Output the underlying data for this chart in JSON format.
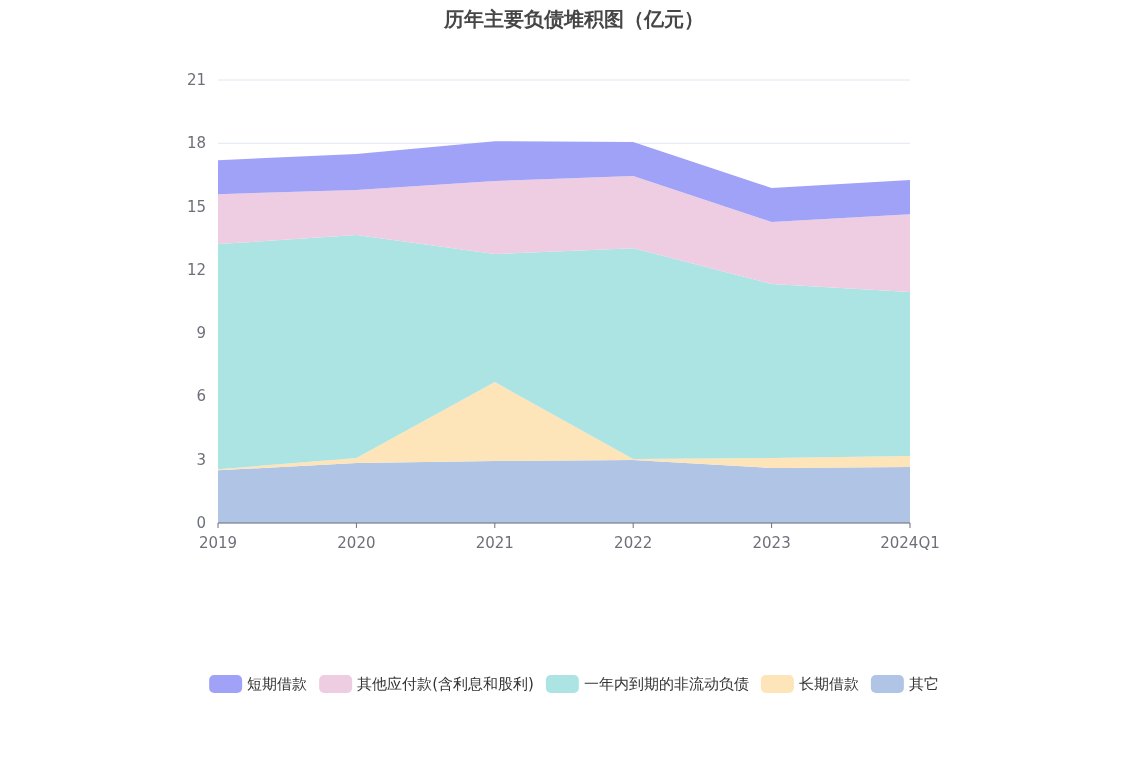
{
  "chart_data": {
    "type": "area",
    "title": "历年主要负债堆积图（亿元）",
    "stacked": true,
    "grid": "y",
    "legend": "bottom",
    "categories": [
      "2019",
      "2020",
      "2021",
      "2022",
      "2023",
      "2024Q1"
    ],
    "ylim": [
      0,
      21
    ],
    "yticks": [
      0,
      3,
      6,
      9,
      12,
      15,
      18,
      21
    ],
    "series": [
      {
        "name": "其它",
        "color": "#b0c4e6",
        "values": [
          2.5,
          2.84,
          2.94,
          2.99,
          2.61,
          2.65
        ]
      },
      {
        "name": "长期借款",
        "color": "#fde4b9",
        "values": [
          0.05,
          0.24,
          3.74,
          0.04,
          0.47,
          0.53
        ]
      },
      {
        "name": "一年内到期的非流动负债",
        "color": "#ace3e3",
        "values": [
          10.67,
          10.57,
          6.07,
          10.0,
          8.25,
          7.77
        ]
      },
      {
        "name": "其他应付款(含利息和股利)",
        "color": "#eecde2",
        "values": [
          2.37,
          2.13,
          3.46,
          3.42,
          2.94,
          3.69
        ]
      },
      {
        "name": "短期借款",
        "color": "#a0a2f8",
        "values": [
          1.61,
          1.71,
          1.89,
          1.61,
          1.61,
          1.62
        ]
      }
    ]
  }
}
